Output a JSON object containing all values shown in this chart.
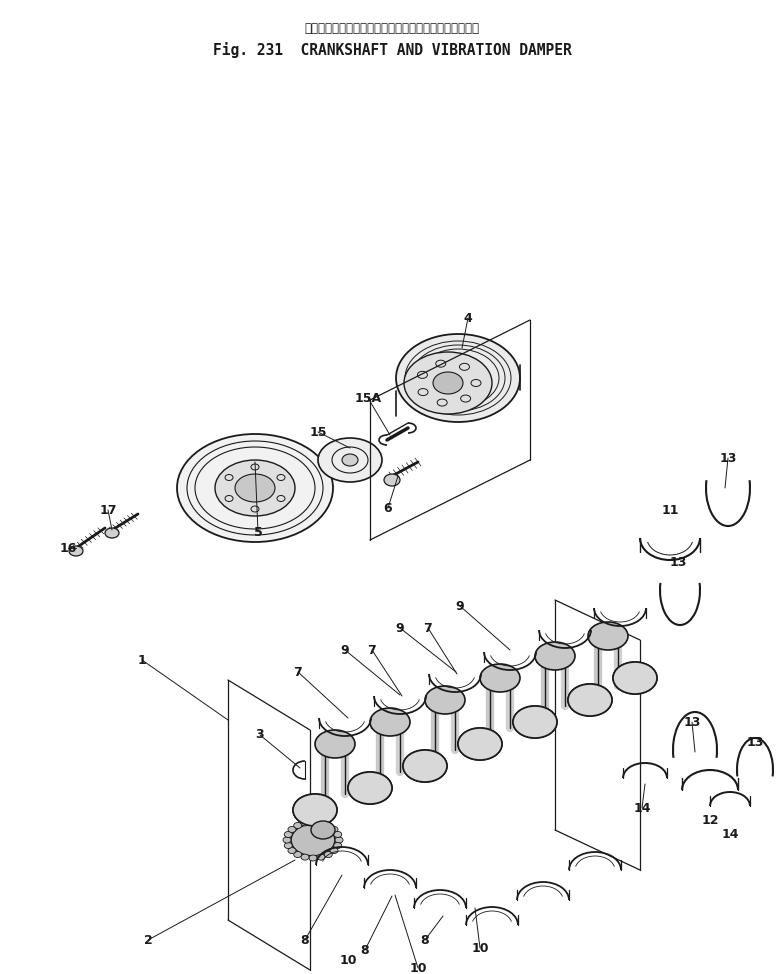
{
  "title_japanese": "クランクシャフト　および　バイブレーション　ダンパ",
  "title_english": "Fig. 231  CRANKSHAFT AND VIBRATION DAMPER",
  "bg_color": "#ffffff",
  "line_color": "#1a1a1a",
  "fig_width": 7.84,
  "fig_height": 9.74,
  "dpi": 100
}
